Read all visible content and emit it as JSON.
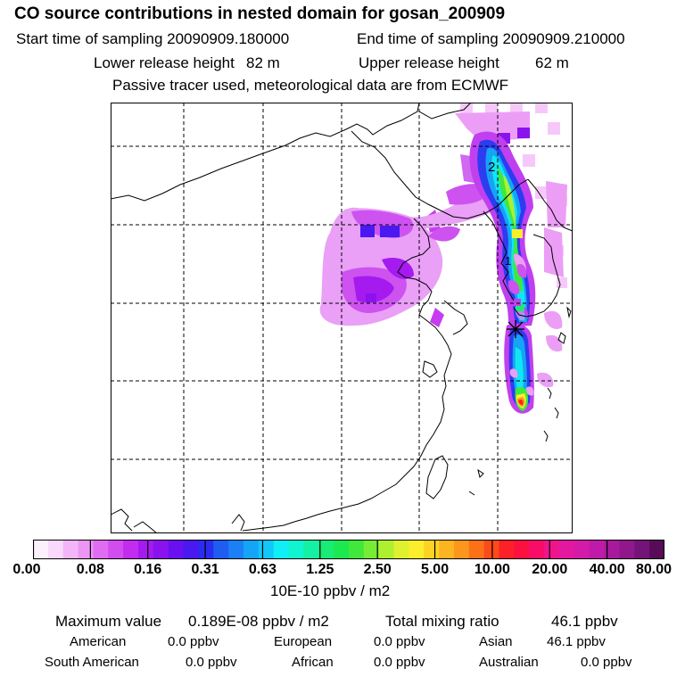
{
  "header": {
    "title": "CO  source contributions in nested domain for gosan_200909",
    "start_label": "Start time of sampling 20090909.180000",
    "end_label": "End time of sampling 20090909.210000",
    "lower_label": "Lower release height",
    "lower_value": "82 m",
    "upper_label": "Upper release height",
    "upper_value": "62 m",
    "note": "Passive tracer used, meteorological data are from ECMWF"
  },
  "map": {
    "markers": [
      "2",
      "1"
    ],
    "receptor_symbol": "*"
  },
  "colorbar": {
    "tick_labels": [
      "0.00",
      "0.08",
      "0.16",
      "0.31",
      "0.63",
      "1.25",
      "2.50",
      "5.00",
      "10.00",
      "20.00",
      "40.00",
      "80.00"
    ],
    "colors": [
      "#fdf0fd",
      "#f9d8fb",
      "#f2b6f8",
      "#eb96f5",
      "#e06cf2",
      "#d24df0",
      "#c22cee",
      "#a51aef",
      "#8a12ef",
      "#6a10f0",
      "#4a18f0",
      "#2c2cf0",
      "#1f5cf2",
      "#1a80f4",
      "#16a4f6",
      "#12c8f8",
      "#10eef6",
      "#10f4d0",
      "#14f0a4",
      "#18ec76",
      "#1ce850",
      "#40e83c",
      "#78ec34",
      "#aef030",
      "#def030",
      "#fcee2c",
      "#fcd224",
      "#fcb420",
      "#fc961c",
      "#fc7018",
      "#fc4a18",
      "#fc2028",
      "#fc1040",
      "#f80c68",
      "#f0148c",
      "#e418a0",
      "#d41aa8",
      "#c01aa8",
      "#a81a9c",
      "#90188c",
      "#741478",
      "#580c58"
    ],
    "units": "10E-10 ppbv / m2"
  },
  "summary": {
    "max_label": "Maximum value",
    "max_value": "0.189E-08 ppbv / m2",
    "total_label": "Total mixing ratio",
    "total_value": "46.1 ppbv",
    "sources": [
      {
        "name": "American",
        "value": "0.0 ppbv"
      },
      {
        "name": "European",
        "value": "0.0 ppbv"
      },
      {
        "name": "Asian",
        "value": "46.1 ppbv"
      },
      {
        "name": "South American",
        "value": "0.0 ppbv"
      },
      {
        "name": "African",
        "value": "0.0 ppbv"
      },
      {
        "name": "Australian",
        "value": "0.0 ppbv"
      }
    ]
  }
}
